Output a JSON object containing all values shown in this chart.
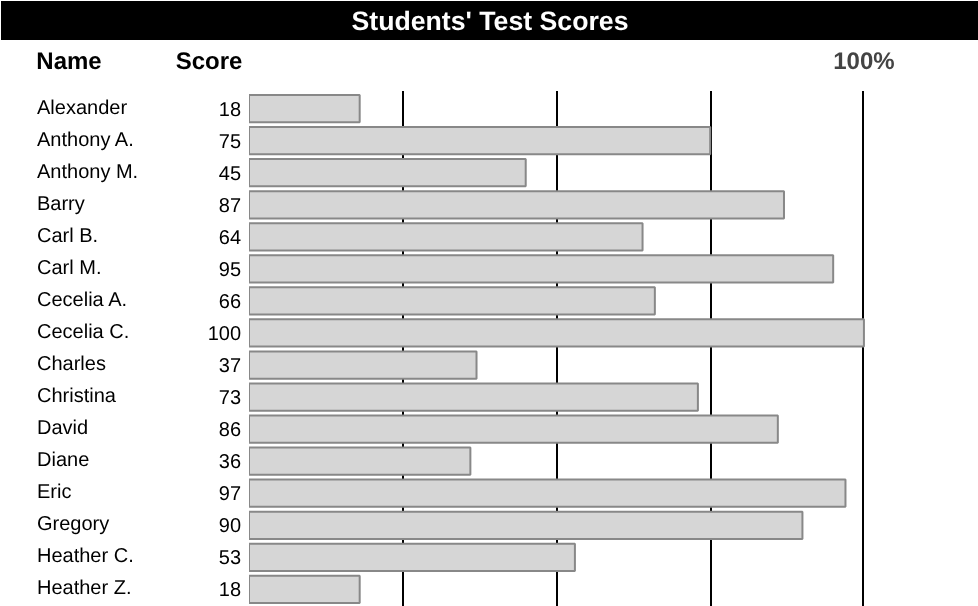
{
  "chart_data": {
    "type": "bar",
    "orientation": "horizontal",
    "title": "Students' Test Scores",
    "annotations": [
      "Name",
      "Score"
    ],
    "categories": [
      "Alexander",
      "Anthony A.",
      "Anthony M.",
      "Barry",
      "Carl B.",
      "Carl M.",
      "Cecelia A.",
      "Cecelia C.",
      "Charles",
      "Christina",
      "David",
      "Diane",
      "Eric",
      "Gregory",
      "Heather C.",
      "Heather Z."
    ],
    "values": [
      18,
      75,
      45,
      87,
      64,
      95,
      66,
      100,
      37,
      73,
      86,
      36,
      97,
      90,
      53,
      18
    ],
    "color": "#d6d6d6",
    "data_labels": true,
    "xlim": [
      0,
      100
    ],
    "xticks": [
      {
        "value": 25,
        "label": null
      },
      {
        "value": 50,
        "label": null
      },
      {
        "value": 75,
        "label": null
      },
      {
        "value": 100,
        "label": "100%"
      }
    ],
    "grid": "x"
  }
}
